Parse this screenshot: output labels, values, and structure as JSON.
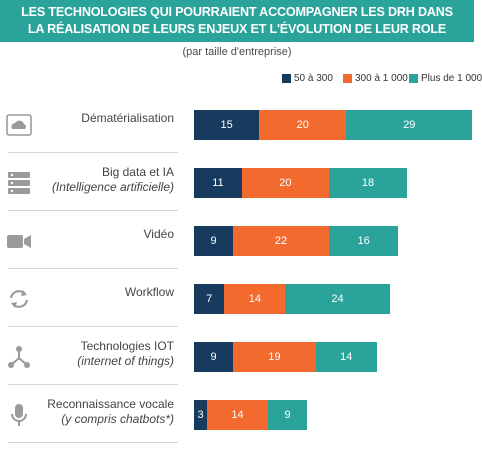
{
  "title_line1": "LES TECHNOLOGIES QUI POURRAIENT ACCOMPAGNER LES DRH DANS",
  "title_line2": "LA RÉALISATION DE LEURS ENJEUX ET L'ÉVOLUTION DE LEUR ROLE",
  "subtitle": "(par taille d'entreprise)",
  "chart_data": {
    "type": "bar",
    "orientation": "horizontal",
    "stacked": true,
    "categories": [
      {
        "label": "Dématérialisation",
        "sublabel": ""
      },
      {
        "label": "Big data et IA",
        "sublabel": "(Intelligence artificielle)"
      },
      {
        "label": "Vidéo",
        "sublabel": ""
      },
      {
        "label": "Workflow",
        "sublabel": ""
      },
      {
        "label": "Technologies IOT",
        "sublabel": "(internet of things)"
      },
      {
        "label": "Reconnaissance vocale",
        "sublabel": "(y compris chatbots*)"
      }
    ],
    "series": [
      {
        "name": "50 à 300",
        "color": "#173b5e",
        "values": [
          15,
          11,
          9,
          7,
          9,
          3
        ]
      },
      {
        "name": "300 à 1 000",
        "color": "#f26a2e",
        "values": [
          20,
          20,
          22,
          14,
          19,
          14
        ]
      },
      {
        "name": "Plus de 1 000",
        "color": "#2aa39a",
        "values": [
          29,
          18,
          16,
          24,
          14,
          9
        ]
      }
    ],
    "legend_position": "top-right",
    "grid": false,
    "icons": [
      "monitor-icon",
      "database-icon",
      "video-camera-icon",
      "refresh-icon",
      "network-icon",
      "microphone-icon"
    ]
  }
}
